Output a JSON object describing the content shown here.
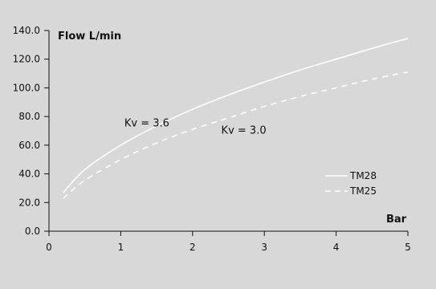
{
  "chart_data": {
    "type": "line",
    "title": "",
    "xlabel": "Bar",
    "ylabel": "Flow L/min",
    "xlim": [
      0,
      5
    ],
    "ylim": [
      0,
      140
    ],
    "x_ticks": [
      0,
      1,
      2,
      3,
      4,
      5
    ],
    "x_tick_labels": [
      "0",
      "1",
      "2",
      "3",
      "4",
      "5"
    ],
    "y_ticks": [
      0,
      20,
      40,
      60,
      80,
      100,
      120,
      140
    ],
    "y_tick_labels": [
      "0.0",
      "20.0",
      "40.0",
      "60.0",
      "80.0",
      "100.0",
      "120.0",
      "140.0"
    ],
    "grid": false,
    "legend_position": "bottom-right",
    "series": [
      {
        "name": "TM28",
        "style": "solid",
        "color": "#ffffff",
        "x": [
          0.2,
          0.5,
          1,
          1.5,
          2,
          2.5,
          3,
          3.5,
          4,
          4.5,
          5
        ],
        "y": [
          27,
          43,
          60,
          73.5,
          85,
          95,
          104,
          112.5,
          120,
          127.5,
          134.5
        ]
      },
      {
        "name": "TM25",
        "style": "dashed",
        "color": "#ffffff",
        "x": [
          0.2,
          0.5,
          1,
          1.5,
          2,
          2.5,
          3,
          3.5,
          4,
          4.5,
          5
        ],
        "y": [
          23,
          35.5,
          50,
          61.5,
          71,
          79,
          87,
          94,
          100,
          106,
          111
        ]
      }
    ],
    "annotations": [
      {
        "text": "Kv = 3.6",
        "x": 1.05,
        "y": 73
      },
      {
        "text": "Kv = 3.0",
        "x": 2.4,
        "y": 68
      }
    ]
  }
}
